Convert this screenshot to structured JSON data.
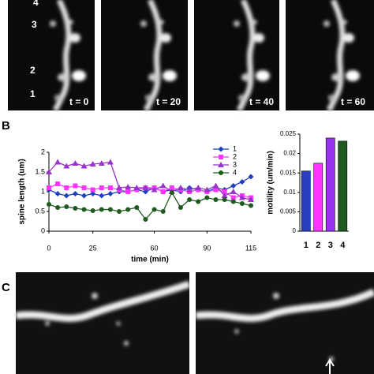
{
  "panel_a": {
    "label_spines": [
      "1",
      "2",
      "3",
      "4"
    ],
    "time_labels": [
      "t = 0",
      "t = 20",
      "t = 40",
      "t = 60"
    ]
  },
  "panel_labels": [
    "B",
    "C"
  ],
  "chart_data": [
    {
      "type": "line",
      "xlabel": "time (min)",
      "ylabel": "spine length (um)",
      "x": [
        0,
        5,
        10,
        15,
        20,
        25,
        30,
        35,
        40,
        45,
        50,
        55,
        60,
        65,
        70,
        75,
        80,
        85,
        90,
        95,
        100,
        105,
        110,
        115
      ],
      "xlim": [
        0,
        115
      ],
      "xticks": [
        0,
        25,
        60,
        90,
        115
      ],
      "ylim": [
        0,
        2
      ],
      "yticks": [
        0,
        0.5,
        1,
        1.5,
        2
      ],
      "series": [
        {
          "name": "1",
          "color": "#1f3fbf",
          "marker": "diamond",
          "values": [
            1.05,
            0.95,
            0.9,
            0.95,
            0.9,
            0.95,
            0.9,
            0.95,
            1.0,
            1.0,
            1.05,
            1.0,
            1.1,
            1.0,
            1.05,
            1.0,
            1.1,
            1.05,
            1.0,
            1.1,
            1.05,
            1.15,
            1.25,
            1.38
          ]
        },
        {
          "name": "2",
          "color": "#ff33ff",
          "marker": "square",
          "values": [
            1.1,
            1.2,
            1.1,
            1.15,
            1.1,
            1.05,
            1.1,
            1.1,
            1.05,
            1.0,
            1.05,
            1.1,
            1.1,
            1.0,
            1.1,
            1.05,
            1.0,
            1.05,
            1.0,
            1.05,
            1.0,
            0.85,
            0.9,
            0.85
          ]
        },
        {
          "name": "3",
          "color": "#9933cc",
          "marker": "triangle",
          "values": [
            1.5,
            1.75,
            1.65,
            1.72,
            1.65,
            1.7,
            1.72,
            1.75,
            1.1,
            1.12,
            1.1,
            1.1,
            1.05,
            1.15,
            1.0,
            1.1,
            1.05,
            1.1,
            1.05,
            1.15,
            0.9,
            1.0,
            0.85,
            0.8
          ]
        },
        {
          "name": "4",
          "color": "#1e5a1e",
          "marker": "circle",
          "values": [
            0.68,
            0.6,
            0.62,
            0.58,
            0.55,
            0.52,
            0.55,
            0.55,
            0.5,
            0.55,
            0.6,
            0.3,
            0.55,
            0.5,
            0.98,
            0.6,
            0.8,
            0.75,
            0.85,
            0.8,
            0.8,
            0.75,
            0.7,
            0.65
          ]
        }
      ]
    },
    {
      "type": "bar",
      "ylabel": "motility (um/min)",
      "categories": [
        "1",
        "2",
        "3",
        "4"
      ],
      "values": [
        0.0155,
        0.0175,
        0.024,
        0.0232
      ],
      "colors": [
        "#2a3fbf",
        "#ff33ff",
        "#9933ee",
        "#1e5a1e"
      ],
      "ylim": [
        0,
        0.025
      ],
      "yticks": [
        0,
        0.005,
        0.01,
        0.015,
        0.02,
        0.025
      ]
    }
  ]
}
